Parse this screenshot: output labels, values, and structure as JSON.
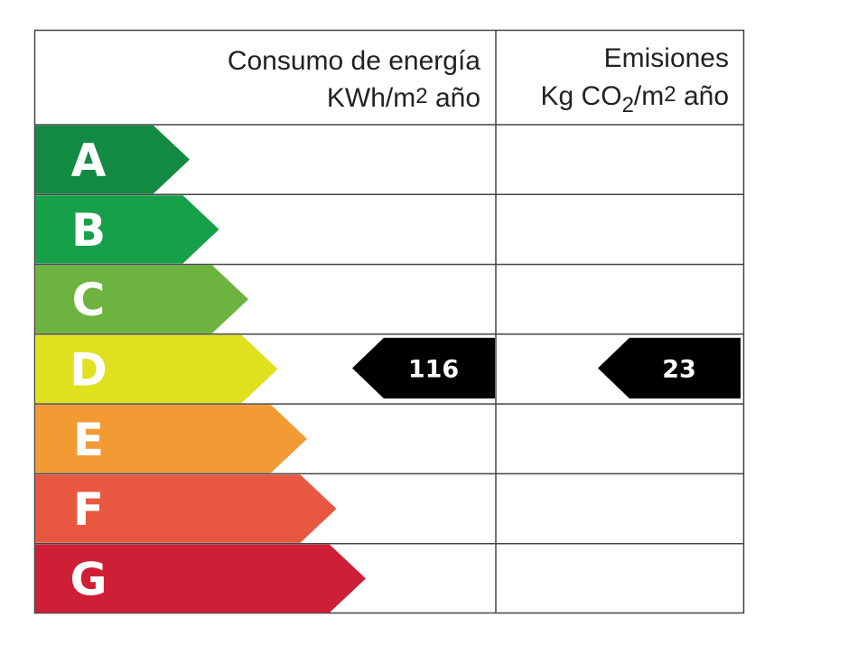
{
  "header": {
    "energy_title": "Consumo de energía",
    "energy_unit": [
      "KWh/m",
      "2",
      " año"
    ],
    "emissions_title": "Emisiones",
    "emissions_unit": [
      "Kg CO",
      "2",
      "/m",
      "2",
      " año"
    ]
  },
  "ratings": [
    {
      "letter": "A",
      "color": "#138a43"
    },
    {
      "letter": "B",
      "color": "#16a04a"
    },
    {
      "letter": "C",
      "color": "#6cb33f"
    },
    {
      "letter": "D",
      "color": "#dfe11e"
    },
    {
      "letter": "E",
      "color": "#f29a34"
    },
    {
      "letter": "F",
      "color": "#e8573f"
    },
    {
      "letter": "G",
      "color": "#cf1f36"
    }
  ],
  "energy": {
    "rating": "D",
    "value": 116
  },
  "emissions": {
    "rating": "D",
    "value": 23
  }
}
